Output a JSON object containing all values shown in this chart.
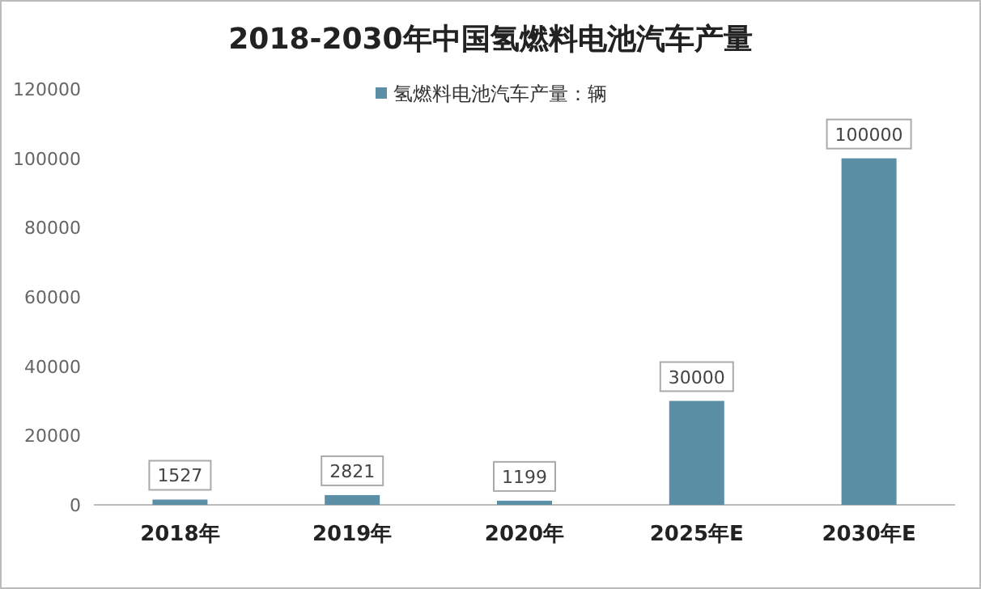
{
  "chart_data": {
    "type": "bar",
    "title": "2018-2030年中国氢燃料电池汽车产量",
    "categories": [
      "2018年",
      "2019年",
      "2020年",
      "2025年E",
      "2030年E"
    ],
    "series": [
      {
        "name": "氢燃料电池汽车产量：辆",
        "color": "#5b8fa6",
        "values": [
          1527,
          2821,
          1199,
          30000,
          100000
        ]
      }
    ],
    "ylim": [
      0,
      120000
    ],
    "yticks": [
      0,
      20000,
      40000,
      60000,
      80000,
      100000,
      120000
    ],
    "data_labels": true,
    "legend": "top",
    "grid": false
  }
}
